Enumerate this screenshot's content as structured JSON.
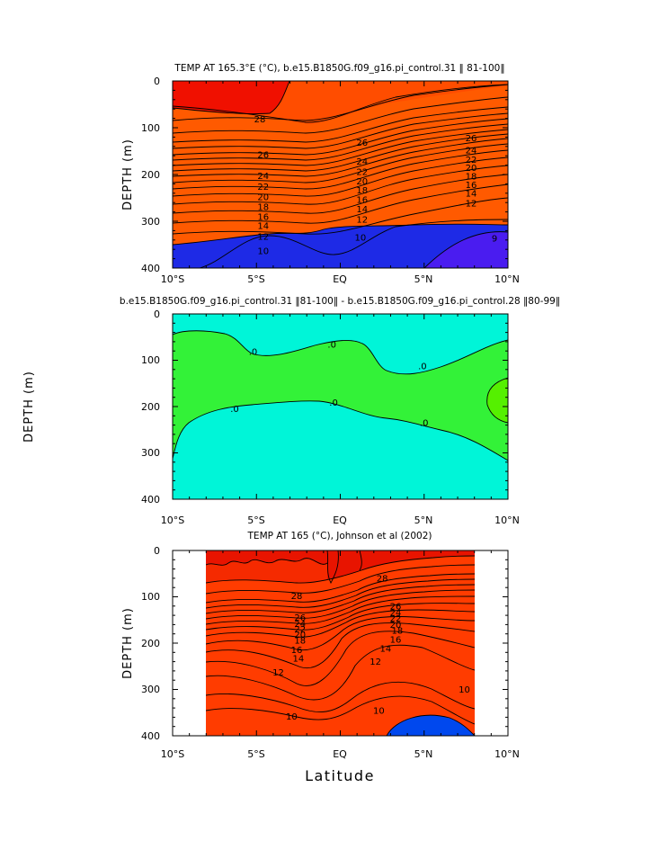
{
  "chart_data": [
    {
      "type": "contour",
      "title": "TEMP AT 165.3°E (°C), b.e15.B1850G.f09_g16.pi_control.31 ‖ 81-100‖",
      "ylabel": "DEPTH (m)",
      "xlabel": "",
      "x_ticks": [
        "10°S",
        "5°S",
        "EQ",
        "5°N",
        "10°N"
      ],
      "y_ticks": [
        "0",
        "100",
        "200",
        "300",
        "400"
      ],
      "xlim": [
        -10,
        10
      ],
      "ylim": [
        400,
        0
      ],
      "contour_interval": 1,
      "contour_labels": [
        {
          "x": -4.8,
          "y": 82,
          "text": "28"
        },
        {
          "x": -4.6,
          "y": 158,
          "text": "26"
        },
        {
          "x": 1.3,
          "y": 132,
          "text": "26"
        },
        {
          "x": 7.8,
          "y": 122,
          "text": "26"
        },
        {
          "x": -4.6,
          "y": 203,
          "text": "24"
        },
        {
          "x": 1.3,
          "y": 172,
          "text": "24"
        },
        {
          "x": 7.8,
          "y": 148,
          "text": "24"
        },
        {
          "x": -4.6,
          "y": 226,
          "text": "22"
        },
        {
          "x": 1.3,
          "y": 194,
          "text": "22"
        },
        {
          "x": 7.8,
          "y": 168,
          "text": "22"
        },
        {
          "x": -4.6,
          "y": 248,
          "text": "20"
        },
        {
          "x": 1.3,
          "y": 214,
          "text": "20"
        },
        {
          "x": 7.8,
          "y": 186,
          "text": "20"
        },
        {
          "x": -4.6,
          "y": 269,
          "text": "18"
        },
        {
          "x": 1.3,
          "y": 234,
          "text": "18"
        },
        {
          "x": 7.8,
          "y": 204,
          "text": "18"
        },
        {
          "x": -4.6,
          "y": 290,
          "text": "16"
        },
        {
          "x": 1.3,
          "y": 254,
          "text": "16"
        },
        {
          "x": 7.8,
          "y": 222,
          "text": "16"
        },
        {
          "x": -4.6,
          "y": 310,
          "text": "14"
        },
        {
          "x": 1.3,
          "y": 274,
          "text": "14"
        },
        {
          "x": 7.8,
          "y": 240,
          "text": "14"
        },
        {
          "x": -4.6,
          "y": 333,
          "text": "12"
        },
        {
          "x": 1.3,
          "y": 296,
          "text": "12"
        },
        {
          "x": 7.8,
          "y": 262,
          "text": "12"
        },
        {
          "x": -4.6,
          "y": 363,
          "text": "10"
        },
        {
          "x": 1.2,
          "y": 335,
          "text": "10"
        },
        {
          "x": 9.2,
          "y": 337,
          "text": "9"
        }
      ]
    },
    {
      "type": "contour",
      "title": "b.e15.B1850G.f09_g16.pi_control.31 ‖81-100‖ - b.e15.B1850G.f09_g16.pi_control.28 ‖80-99‖",
      "ylabel": "DEPTH (m)",
      "xlabel": "",
      "x_ticks": [
        "10°S",
        "5°S",
        "EQ",
        "5°N",
        "10°N"
      ],
      "y_ticks": [
        "0",
        "100",
        "200",
        "300",
        "400"
      ],
      "xlim": [
        -10,
        10
      ],
      "ylim": [
        400,
        0
      ],
      "contour_labels": [
        {
          "x": -5.2,
          "y": 82,
          "text": ".0"
        },
        {
          "x": -0.5,
          "y": 66,
          "text": ".0"
        },
        {
          "x": 4.9,
          "y": 113,
          "text": ".0"
        },
        {
          "x": -6.3,
          "y": 205,
          "text": ".0"
        },
        {
          "x": -0.4,
          "y": 191,
          "text": ".0"
        },
        {
          "x": 5.0,
          "y": 235,
          "text": ".0"
        }
      ]
    },
    {
      "type": "contour",
      "title": "TEMP AT 165 (°C), Johnson et al (2002)",
      "ylabel": "DEPTH (m)",
      "xlabel": "Latitude",
      "x_ticks": [
        "10°S",
        "5°S",
        "EQ",
        "5°N",
        "10°N"
      ],
      "y_ticks": [
        "0",
        "100",
        "200",
        "300",
        "400"
      ],
      "xlim": [
        -10,
        10
      ],
      "ylim": [
        400,
        0
      ],
      "data_xrange": [
        -8,
        8
      ],
      "contour_interval": 1,
      "contour_labels": [
        {
          "x": -2.6,
          "y": 98,
          "text": "28"
        },
        {
          "x": 2.5,
          "y": 60,
          "text": "28"
        },
        {
          "x": -2.4,
          "y": 145,
          "text": "26"
        },
        {
          "x": 3.3,
          "y": 120,
          "text": "26"
        },
        {
          "x": -2.4,
          "y": 158,
          "text": "24"
        },
        {
          "x": 3.3,
          "y": 134,
          "text": "24"
        },
        {
          "x": -2.4,
          "y": 170,
          "text": "22"
        },
        {
          "x": 3.3,
          "y": 147,
          "text": "22"
        },
        {
          "x": -2.4,
          "y": 182,
          "text": "20"
        },
        {
          "x": 3.3,
          "y": 160,
          "text": "20"
        },
        {
          "x": -2.4,
          "y": 194,
          "text": "18"
        },
        {
          "x": 3.4,
          "y": 173,
          "text": "18"
        },
        {
          "x": -2.6,
          "y": 215,
          "text": "16"
        },
        {
          "x": 3.3,
          "y": 192,
          "text": "16"
        },
        {
          "x": -2.5,
          "y": 233,
          "text": "14"
        },
        {
          "x": 2.7,
          "y": 212,
          "text": "14"
        },
        {
          "x": -3.7,
          "y": 263,
          "text": "12"
        },
        {
          "x": 2.1,
          "y": 240,
          "text": "12"
        },
        {
          "x": 7.4,
          "y": 300,
          "text": "10"
        },
        {
          "x": -2.9,
          "y": 358,
          "text": "10"
        },
        {
          "x": 2.3,
          "y": 346,
          "text": "10"
        }
      ]
    }
  ]
}
